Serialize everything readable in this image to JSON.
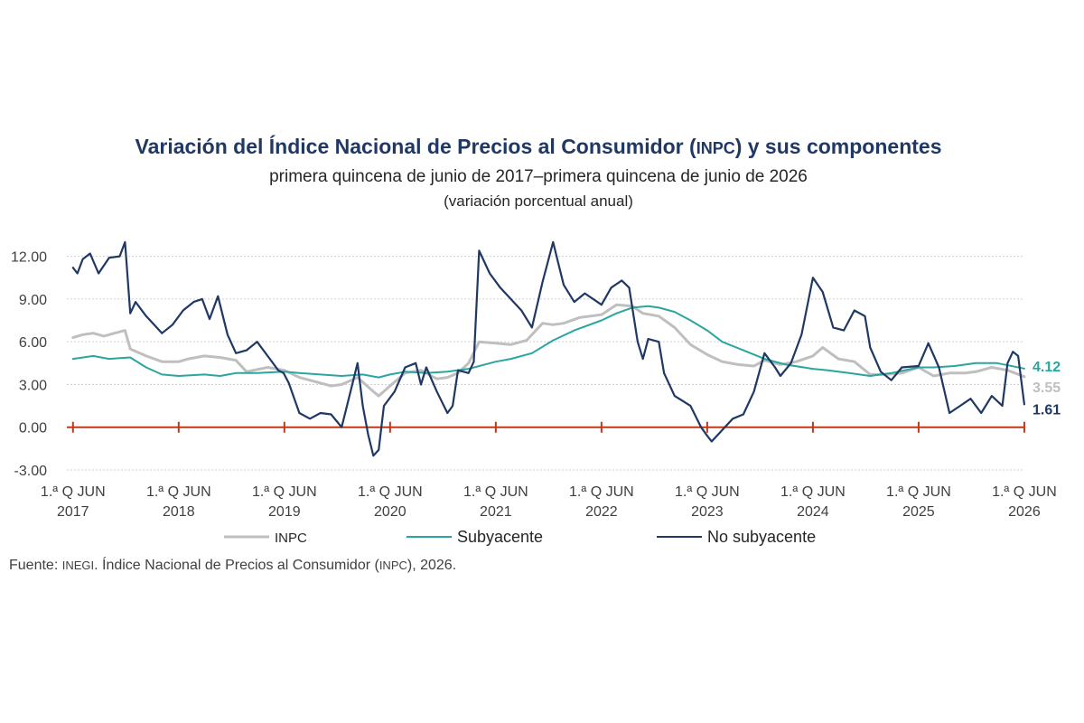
{
  "chart_data": {
    "type": "line",
    "title": {
      "part1": "Variación del Índice Nacional de Precios al Consumidor (",
      "abbr": "INPC",
      "part2": ") y sus componentes"
    },
    "subtitle": "primera quincena de junio de 2017–primera quincena de junio de 2026",
    "units": "(variación porcentual anual)",
    "source": {
      "part1": "Fuente: ",
      "abbr1": "INEGI",
      "part2": ". Índice Nacional de Precios al Consumidor (",
      "abbr2": "INPC",
      "part3": "), 2026."
    },
    "ylim": [
      -3,
      13.5
    ],
    "xlim": [
      2017.4,
      2026.45
    ],
    "y_ticks": [
      "12.00",
      "9.00",
      "6.00",
      "3.00",
      "0.00",
      "-3.00"
    ],
    "y_tick_values": [
      12,
      9,
      6,
      3,
      0,
      -3
    ],
    "x_tick_values": [
      2017.458,
      2018.458,
      2019.458,
      2020.458,
      2021.458,
      2022.458,
      2023.458,
      2024.458,
      2025.458,
      2026.458
    ],
    "x_tick_labels": [
      {
        "line1": "1.ª Q JUN",
        "line2": "2017"
      },
      {
        "line1": "1.ª Q JUN",
        "line2": "2018"
      },
      {
        "line1": "1.ª Q JUN",
        "line2": "2019"
      },
      {
        "line1": "1.ª Q JUN",
        "line2": "2020"
      },
      {
        "line1": "1.ª Q JUN",
        "line2": "2021"
      },
      {
        "line1": "1.ª Q JUN",
        "line2": "2022"
      },
      {
        "line1": "1.ª Q JUN",
        "line2": "2023"
      },
      {
        "line1": "1.ª Q JUN",
        "line2": "2024"
      },
      {
        "line1": "1.ª Q JUN",
        "line2": "2025"
      },
      {
        "line1": "1.ª Q JUN",
        "line2": "2026"
      }
    ],
    "grid": "horizontal",
    "legend_position": "bottom",
    "series": [
      {
        "name": "INPC",
        "color": "#bfbfbf",
        "end_label": "3.55",
        "points": [
          [
            2017.458,
            6.3
          ],
          [
            2017.55,
            6.5
          ],
          [
            2017.65,
            6.6
          ],
          [
            2017.75,
            6.4
          ],
          [
            2017.85,
            6.6
          ],
          [
            2017.95,
            6.8
          ],
          [
            2018.0,
            5.5
          ],
          [
            2018.15,
            5.0
          ],
          [
            2018.3,
            4.6
          ],
          [
            2018.458,
            4.6
          ],
          [
            2018.55,
            4.8
          ],
          [
            2018.7,
            5.0
          ],
          [
            2018.85,
            4.9
          ],
          [
            2019.0,
            4.7
          ],
          [
            2019.1,
            3.9
          ],
          [
            2019.3,
            4.2
          ],
          [
            2019.458,
            4.0
          ],
          [
            2019.6,
            3.5
          ],
          [
            2019.75,
            3.2
          ],
          [
            2019.9,
            2.9
          ],
          [
            2020.0,
            3.0
          ],
          [
            2020.15,
            3.5
          ],
          [
            2020.3,
            2.5
          ],
          [
            2020.35,
            2.2
          ],
          [
            2020.458,
            2.9
          ],
          [
            2020.6,
            3.8
          ],
          [
            2020.75,
            4.0
          ],
          [
            2020.9,
            3.4
          ],
          [
            2021.0,
            3.5
          ],
          [
            2021.1,
            3.8
          ],
          [
            2021.2,
            4.5
          ],
          [
            2021.3,
            6.0
          ],
          [
            2021.458,
            5.9
          ],
          [
            2021.6,
            5.8
          ],
          [
            2021.75,
            6.1
          ],
          [
            2021.9,
            7.3
          ],
          [
            2022.0,
            7.2
          ],
          [
            2022.1,
            7.3
          ],
          [
            2022.25,
            7.7
          ],
          [
            2022.458,
            7.9
          ],
          [
            2022.6,
            8.6
          ],
          [
            2022.75,
            8.5
          ],
          [
            2022.85,
            8.0
          ],
          [
            2023.0,
            7.8
          ],
          [
            2023.15,
            7.0
          ],
          [
            2023.3,
            5.8
          ],
          [
            2023.458,
            5.1
          ],
          [
            2023.6,
            4.6
          ],
          [
            2023.75,
            4.4
          ],
          [
            2023.9,
            4.3
          ],
          [
            2024.0,
            4.7
          ],
          [
            2024.15,
            4.4
          ],
          [
            2024.3,
            4.6
          ],
          [
            2024.458,
            5.0
          ],
          [
            2024.55,
            5.6
          ],
          [
            2024.7,
            4.8
          ],
          [
            2024.85,
            4.6
          ],
          [
            2025.0,
            3.7
          ],
          [
            2025.15,
            3.7
          ],
          [
            2025.3,
            3.8
          ],
          [
            2025.458,
            4.2
          ],
          [
            2025.6,
            3.6
          ],
          [
            2025.75,
            3.8
          ],
          [
            2025.9,
            3.8
          ],
          [
            2026.0,
            3.9
          ],
          [
            2026.15,
            4.2
          ],
          [
            2026.3,
            4.0
          ],
          [
            2026.458,
            3.55
          ]
        ]
      },
      {
        "name": "Subyacente",
        "color": "#2aa5a0",
        "end_label": "4.12",
        "points": [
          [
            2017.458,
            4.8
          ],
          [
            2017.65,
            5.0
          ],
          [
            2017.8,
            4.8
          ],
          [
            2018.0,
            4.9
          ],
          [
            2018.15,
            4.2
          ],
          [
            2018.3,
            3.7
          ],
          [
            2018.458,
            3.6
          ],
          [
            2018.7,
            3.7
          ],
          [
            2018.85,
            3.6
          ],
          [
            2019.0,
            3.8
          ],
          [
            2019.2,
            3.8
          ],
          [
            2019.458,
            3.9
          ],
          [
            2019.6,
            3.8
          ],
          [
            2019.8,
            3.7
          ],
          [
            2020.0,
            3.6
          ],
          [
            2020.2,
            3.7
          ],
          [
            2020.35,
            3.5
          ],
          [
            2020.458,
            3.7
          ],
          [
            2020.6,
            3.9
          ],
          [
            2020.8,
            3.8
          ],
          [
            2021.0,
            3.9
          ],
          [
            2021.2,
            4.1
          ],
          [
            2021.458,
            4.6
          ],
          [
            2021.6,
            4.8
          ],
          [
            2021.8,
            5.2
          ],
          [
            2022.0,
            6.1
          ],
          [
            2022.2,
            6.8
          ],
          [
            2022.458,
            7.5
          ],
          [
            2022.6,
            8.0
          ],
          [
            2022.75,
            8.4
          ],
          [
            2022.9,
            8.5
          ],
          [
            2023.0,
            8.4
          ],
          [
            2023.15,
            8.1
          ],
          [
            2023.3,
            7.5
          ],
          [
            2023.458,
            6.8
          ],
          [
            2023.6,
            6.0
          ],
          [
            2023.8,
            5.4
          ],
          [
            2024.0,
            4.8
          ],
          [
            2024.2,
            4.4
          ],
          [
            2024.458,
            4.1
          ],
          [
            2024.6,
            4.0
          ],
          [
            2024.8,
            3.8
          ],
          [
            2025.0,
            3.6
          ],
          [
            2025.2,
            3.8
          ],
          [
            2025.458,
            4.2
          ],
          [
            2025.6,
            4.2
          ],
          [
            2025.8,
            4.3
          ],
          [
            2026.0,
            4.5
          ],
          [
            2026.2,
            4.5
          ],
          [
            2026.458,
            4.12
          ]
        ]
      },
      {
        "name": "No subyacente",
        "color": "#1f3864",
        "end_label": "1.61",
        "points": [
          [
            2017.458,
            11.2
          ],
          [
            2017.5,
            10.8
          ],
          [
            2017.55,
            11.8
          ],
          [
            2017.62,
            12.2
          ],
          [
            2017.7,
            10.8
          ],
          [
            2017.8,
            11.9
          ],
          [
            2017.9,
            12.0
          ],
          [
            2017.95,
            13.0
          ],
          [
            2018.0,
            8.0
          ],
          [
            2018.05,
            8.8
          ],
          [
            2018.15,
            7.8
          ],
          [
            2018.25,
            7.0
          ],
          [
            2018.3,
            6.6
          ],
          [
            2018.4,
            7.2
          ],
          [
            2018.5,
            8.2
          ],
          [
            2018.6,
            8.8
          ],
          [
            2018.68,
            9.0
          ],
          [
            2018.75,
            7.6
          ],
          [
            2018.83,
            9.2
          ],
          [
            2018.92,
            6.5
          ],
          [
            2019.0,
            5.2
          ],
          [
            2019.1,
            5.4
          ],
          [
            2019.2,
            6.0
          ],
          [
            2019.3,
            5.0
          ],
          [
            2019.4,
            4.0
          ],
          [
            2019.45,
            3.8
          ],
          [
            2019.5,
            3.1
          ],
          [
            2019.6,
            1.0
          ],
          [
            2019.7,
            0.6
          ],
          [
            2019.8,
            1.0
          ],
          [
            2019.9,
            0.9
          ],
          [
            2020.0,
            0.0
          ],
          [
            2020.05,
            1.5
          ],
          [
            2020.15,
            4.5
          ],
          [
            2020.2,
            1.5
          ],
          [
            2020.25,
            -0.5
          ],
          [
            2020.3,
            -2.0
          ],
          [
            2020.35,
            -1.6
          ],
          [
            2020.4,
            1.5
          ],
          [
            2020.5,
            2.5
          ],
          [
            2020.6,
            4.2
          ],
          [
            2020.7,
            4.5
          ],
          [
            2020.75,
            3.0
          ],
          [
            2020.8,
            4.2
          ],
          [
            2020.9,
            2.5
          ],
          [
            2021.0,
            1.0
          ],
          [
            2021.05,
            1.5
          ],
          [
            2021.1,
            4.0
          ],
          [
            2021.2,
            3.8
          ],
          [
            2021.25,
            4.6
          ],
          [
            2021.3,
            12.4
          ],
          [
            2021.4,
            10.8
          ],
          [
            2021.5,
            9.8
          ],
          [
            2021.6,
            9.0
          ],
          [
            2021.7,
            8.2
          ],
          [
            2021.8,
            7.0
          ],
          [
            2021.9,
            10.2
          ],
          [
            2022.0,
            13.0
          ],
          [
            2022.05,
            11.5
          ],
          [
            2022.1,
            10.0
          ],
          [
            2022.2,
            8.8
          ],
          [
            2022.3,
            9.4
          ],
          [
            2022.458,
            8.6
          ],
          [
            2022.55,
            9.8
          ],
          [
            2022.65,
            10.3
          ],
          [
            2022.72,
            9.8
          ],
          [
            2022.8,
            6.0
          ],
          [
            2022.85,
            4.8
          ],
          [
            2022.9,
            6.2
          ],
          [
            2023.0,
            6.0
          ],
          [
            2023.05,
            3.8
          ],
          [
            2023.15,
            2.2
          ],
          [
            2023.3,
            1.5
          ],
          [
            2023.4,
            0.0
          ],
          [
            2023.458,
            -0.6
          ],
          [
            2023.5,
            -1.0
          ],
          [
            2023.6,
            -0.2
          ],
          [
            2023.7,
            0.6
          ],
          [
            2023.8,
            0.9
          ],
          [
            2023.9,
            2.5
          ],
          [
            2024.0,
            5.2
          ],
          [
            2024.1,
            4.2
          ],
          [
            2024.15,
            3.6
          ],
          [
            2024.25,
            4.5
          ],
          [
            2024.35,
            6.5
          ],
          [
            2024.458,
            10.5
          ],
          [
            2024.55,
            9.5
          ],
          [
            2024.65,
            7.0
          ],
          [
            2024.75,
            6.8
          ],
          [
            2024.85,
            8.2
          ],
          [
            2024.95,
            7.8
          ],
          [
            2025.0,
            5.6
          ],
          [
            2025.1,
            3.9
          ],
          [
            2025.2,
            3.3
          ],
          [
            2025.3,
            4.2
          ],
          [
            2025.458,
            4.3
          ],
          [
            2025.55,
            5.9
          ],
          [
            2025.65,
            4.2
          ],
          [
            2025.75,
            1.0
          ],
          [
            2025.85,
            1.5
          ],
          [
            2025.95,
            2.0
          ],
          [
            2026.05,
            1.0
          ],
          [
            2026.15,
            2.2
          ],
          [
            2026.25,
            1.5
          ],
          [
            2026.3,
            4.5
          ],
          [
            2026.35,
            5.3
          ],
          [
            2026.4,
            5.0
          ],
          [
            2026.458,
            1.61
          ]
        ]
      }
    ]
  }
}
